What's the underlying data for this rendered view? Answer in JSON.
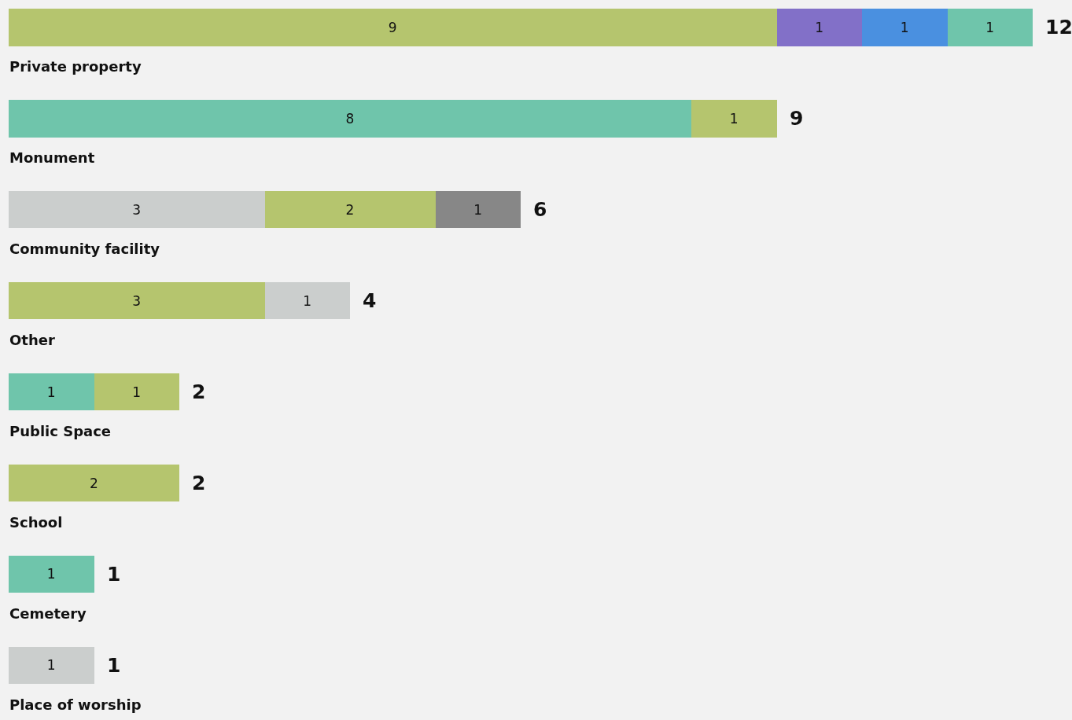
{
  "chart_data": {
    "type": "bar",
    "orientation": "horizontal",
    "stacked": true,
    "data_labels": true,
    "categories": [
      "Private property",
      "Monument",
      "Community facility",
      "Other",
      "Public Space",
      "School",
      "Cemetery",
      "Place of worship"
    ],
    "series": [
      {
        "values": [
          9,
          8,
          3,
          3,
          1,
          2,
          1,
          1
        ],
        "colors": [
          "#b5c56e",
          "#6fc5ab",
          "#cbcecd",
          "#b5c56e",
          "#6fc5ab",
          "#b5c56e",
          "#6fc5ab",
          "#cbcecd"
        ]
      },
      {
        "values": [
          1,
          1,
          2,
          1,
          1,
          null,
          null,
          null
        ],
        "colors": [
          "#8270c8",
          "#b5c56e",
          "#b5c56e",
          "#cbcecd",
          "#b5c56e",
          "#b5c56e",
          "#b5c56e",
          "#b5c56e"
        ]
      },
      {
        "values": [
          1,
          null,
          1,
          null,
          null,
          null,
          null,
          null
        ],
        "colors": [
          "#4a90e0",
          "#878787",
          "#878787",
          "#878787",
          "#878787",
          "#878787",
          "#878787",
          "#878787"
        ]
      },
      {
        "values": [
          1,
          null,
          null,
          null,
          null,
          null,
          null,
          null
        ],
        "colors": [
          "#6fc5ab",
          "#6fc5ab",
          "#6fc5ab",
          "#6fc5ab",
          "#6fc5ab",
          "#6fc5ab",
          "#6fc5ab",
          "#6fc5ab"
        ]
      }
    ],
    "totals": [
      "12",
      "9",
      "6",
      "4",
      "2",
      "2",
      "1",
      "1"
    ]
  }
}
